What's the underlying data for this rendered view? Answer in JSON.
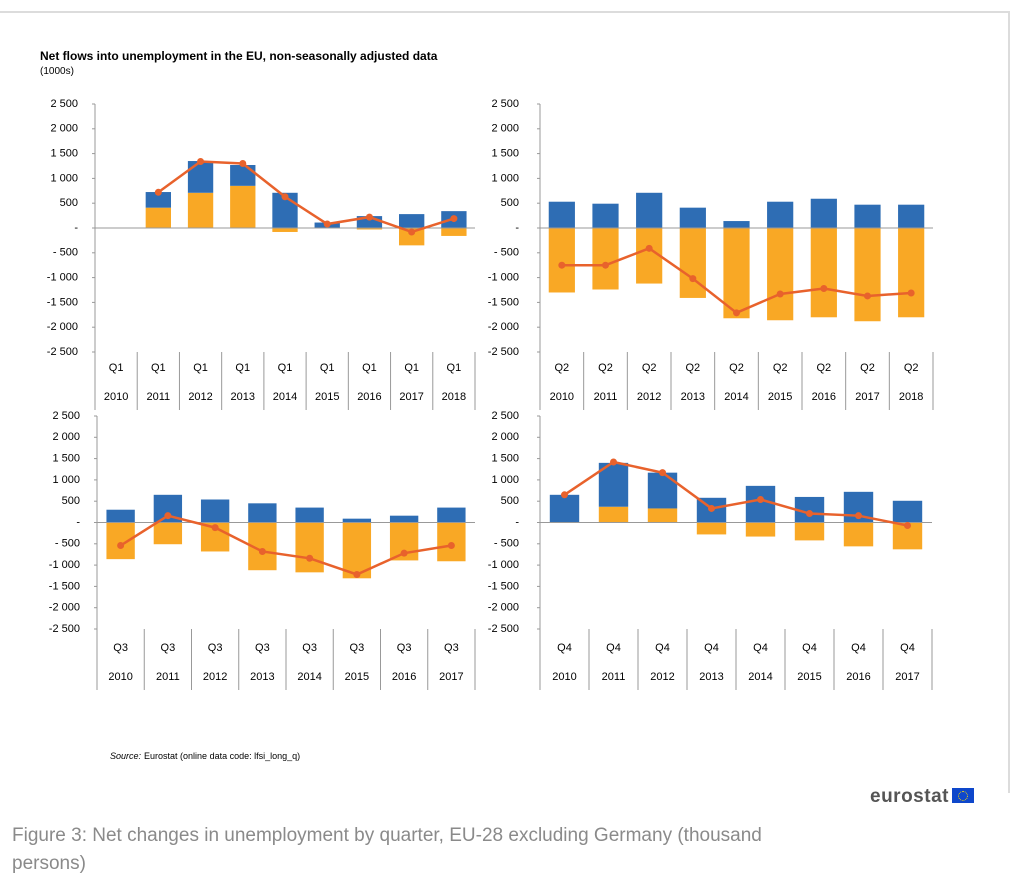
{
  "title": "Net flows into unemployment in the EU, non-seasonally adjusted data",
  "subtitle": "(1000s)",
  "source_label": "Source:",
  "source_text": "Eurostat (online data code: lfsi_long_q)",
  "logo": "eurostat",
  "caption": "Figure 3: Net changes in unemployment by quarter, EU-28 excluding Germany (thousand persons)",
  "chart_data": [
    {
      "type": "bar",
      "stacked": true,
      "categories": [
        [
          "Q1",
          "2010"
        ],
        [
          "Q1",
          "2011"
        ],
        [
          "Q1",
          "2012"
        ],
        [
          "Q1",
          "2013"
        ],
        [
          "Q1",
          "2014"
        ],
        [
          "Q1",
          "2015"
        ],
        [
          "Q1",
          "2016"
        ],
        [
          "Q1",
          "2017"
        ],
        [
          "Q1",
          "2018"
        ]
      ],
      "ylim": [
        -2500,
        2500
      ],
      "yticks": [
        {
          "value": 2500,
          "label": "2 500"
        },
        {
          "value": 2000,
          "label": "2 000"
        },
        {
          "value": 1500,
          "label": "1 500"
        },
        {
          "value": 1000,
          "label": "1 000"
        },
        500,
        {
          "value": 0,
          "label": "-"
        },
        {
          "value": -500,
          "label": "- 500"
        },
        {
          "value": -1000,
          "label": "-1 000"
        },
        {
          "value": -1500,
          "label": "-1 500"
        },
        {
          "value": -2000,
          "label": "-2 000"
        },
        {
          "value": -2500,
          "label": "-2 500"
        }
      ],
      "series": [
        {
          "type": "bar",
          "color": "#f9a825",
          "values": [
            null,
            410,
            710,
            850,
            -80,
            0,
            -30,
            -350,
            -160
          ]
        },
        {
          "type": "bar",
          "color": "#2e6db4",
          "values": [
            null,
            315,
            640,
            420,
            710,
            110,
            240,
            280,
            340
          ]
        },
        {
          "type": "line",
          "color": "#e8622c",
          "values": [
            null,
            720,
            1340,
            1300,
            630,
            80,
            220,
            -80,
            190
          ]
        }
      ]
    },
    {
      "type": "bar",
      "stacked": true,
      "categories": [
        [
          "Q2",
          "2010"
        ],
        [
          "Q2",
          "2011"
        ],
        [
          "Q2",
          "2012"
        ],
        [
          "Q2",
          "2013"
        ],
        [
          "Q2",
          "2014"
        ],
        [
          "Q2",
          "2015"
        ],
        [
          "Q2",
          "2016"
        ],
        [
          "Q2",
          "2017"
        ],
        [
          "Q2",
          "2018"
        ]
      ],
      "ylim": [
        -2500,
        2500
      ],
      "yticks": [
        {
          "value": 2500,
          "label": "2 500"
        },
        {
          "value": 2000,
          "label": "2 000"
        },
        {
          "value": 1500,
          "label": "1 500"
        },
        {
          "value": 1000,
          "label": "1 000"
        },
        500,
        {
          "value": 0,
          "label": "-"
        },
        {
          "value": -500,
          "label": "- 500"
        },
        {
          "value": -1000,
          "label": "-1 000"
        },
        {
          "value": -1500,
          "label": "-1 500"
        },
        {
          "value": -2000,
          "label": "-2 000"
        },
        {
          "value": -2500,
          "label": "-2 500"
        }
      ],
      "series": [
        {
          "type": "bar",
          "color": "#f9a825",
          "values": [
            -1300,
            -1240,
            -1120,
            -1410,
            -1820,
            -1860,
            -1800,
            -1880,
            -1800
          ]
        },
        {
          "type": "bar",
          "color": "#2e6db4",
          "values": [
            530,
            490,
            710,
            410,
            140,
            530,
            590,
            470,
            470
          ]
        },
        {
          "type": "line",
          "color": "#e8622c",
          "values": [
            -750,
            -750,
            -410,
            -1020,
            -1710,
            -1330,
            -1220,
            -1370,
            -1310
          ]
        }
      ]
    },
    {
      "type": "bar",
      "stacked": true,
      "categories": [
        [
          "Q3",
          "2010"
        ],
        [
          "Q3",
          "2011"
        ],
        [
          "Q3",
          "2012"
        ],
        [
          "Q3",
          "2013"
        ],
        [
          "Q3",
          "2014"
        ],
        [
          "Q3",
          "2015"
        ],
        [
          "Q3",
          "2016"
        ],
        [
          "Q3",
          "2017"
        ]
      ],
      "ylim": [
        -2500,
        2500
      ],
      "yticks": [
        {
          "value": 2500,
          "label": "2 500"
        },
        {
          "value": 2000,
          "label": "2 000"
        },
        {
          "value": 1500,
          "label": "1 500"
        },
        {
          "value": 1000,
          "label": "1 000"
        },
        500,
        {
          "value": 0,
          "label": "-"
        },
        {
          "value": -500,
          "label": "- 500"
        },
        {
          "value": -1000,
          "label": "-1 000"
        },
        {
          "value": -1500,
          "label": "-1 500"
        },
        {
          "value": -2000,
          "label": "-2 000"
        },
        {
          "value": -2500,
          "label": "-2 500"
        }
      ],
      "series": [
        {
          "type": "bar",
          "color": "#f9a825",
          "values": [
            -860,
            -510,
            -680,
            -1120,
            -1170,
            -1310,
            -890,
            -910
          ]
        },
        {
          "type": "bar",
          "color": "#2e6db4",
          "values": [
            300,
            650,
            540,
            450,
            350,
            90,
            160,
            350
          ]
        },
        {
          "type": "line",
          "color": "#e8622c",
          "values": [
            -540,
            160,
            -120,
            -680,
            -840,
            -1220,
            -720,
            -540
          ]
        }
      ]
    },
    {
      "type": "bar",
      "stacked": true,
      "categories": [
        [
          "Q4",
          "2010"
        ],
        [
          "Q4",
          "2011"
        ],
        [
          "Q4",
          "2012"
        ],
        [
          "Q4",
          "2013"
        ],
        [
          "Q4",
          "2014"
        ],
        [
          "Q4",
          "2015"
        ],
        [
          "Q4",
          "2016"
        ],
        [
          "Q4",
          "2017"
        ]
      ],
      "ylim": [
        -2500,
        2500
      ],
      "yticks": [
        {
          "value": 2500,
          "label": "2 500"
        },
        {
          "value": 2000,
          "label": "2 000"
        },
        {
          "value": 1500,
          "label": "1 500"
        },
        {
          "value": 1000,
          "label": "1 000"
        },
        500,
        {
          "value": 0,
          "label": "-"
        },
        {
          "value": -500,
          "label": "- 500"
        },
        {
          "value": -1000,
          "label": "-1 000"
        },
        {
          "value": -1500,
          "label": "-1 500"
        },
        {
          "value": -2000,
          "label": "-2 000"
        },
        {
          "value": -2500,
          "label": "-2 500"
        }
      ],
      "series": [
        {
          "type": "bar",
          "color": "#f9a825",
          "values": [
            0,
            370,
            330,
            -280,
            -330,
            -420,
            -560,
            -630
          ]
        },
        {
          "type": "bar",
          "color": "#2e6db4",
          "values": [
            650,
            1030,
            840,
            580,
            860,
            600,
            720,
            510
          ]
        },
        {
          "type": "line",
          "color": "#e8622c",
          "values": [
            650,
            1420,
            1170,
            330,
            540,
            210,
            160,
            -70
          ]
        }
      ]
    }
  ]
}
